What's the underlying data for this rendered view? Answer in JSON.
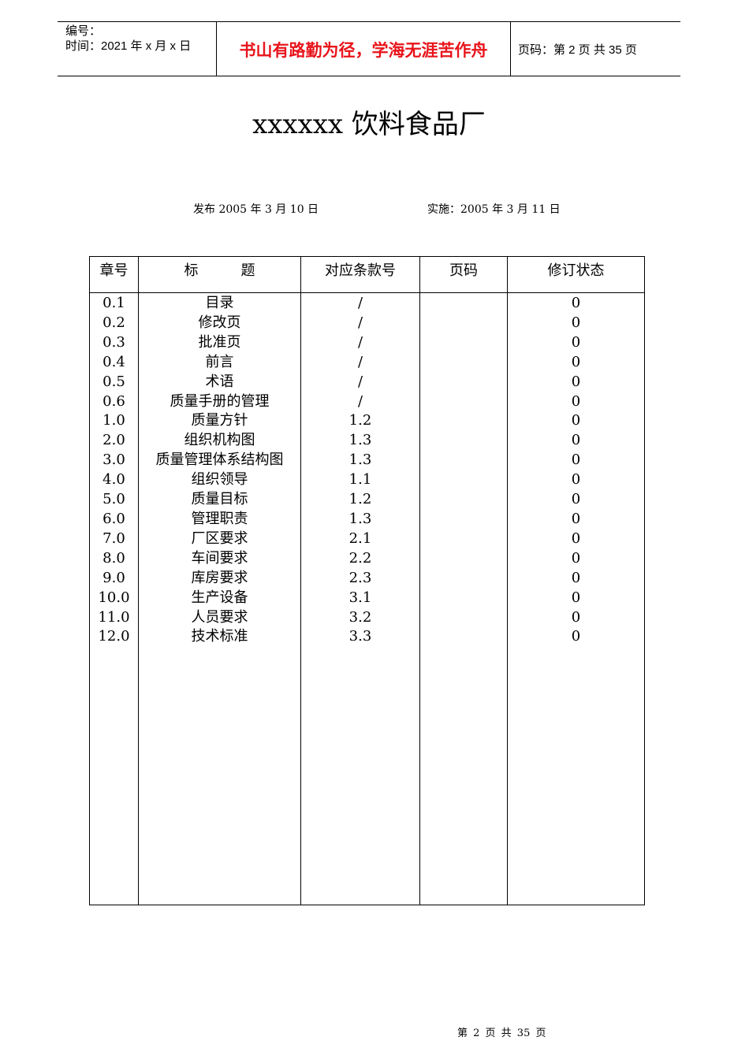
{
  "header": {
    "number_label": "编号：",
    "time_label": "时间：2021 年 x 月 x 日",
    "slogan": "书山有路勤为径，学海无涯苦作舟",
    "page_info": "页码：第 2 页  共 35 页"
  },
  "title": "xxxxxx 饮料食品厂",
  "publish": "发布 2005 年 3 月 10 日",
  "implement": "实施：2005 年 3 月 11 日",
  "table": {
    "columns": [
      "章号",
      "标　　　题",
      "对应条款号",
      "页码",
      "修订状态"
    ],
    "rows": [
      [
        "0.1",
        "目录",
        "/",
        "",
        "0"
      ],
      [
        "0.2",
        "修改页",
        "/",
        "",
        "0"
      ],
      [
        "0.3",
        "批准页",
        "/",
        "",
        "0"
      ],
      [
        "0.4",
        "前言",
        "/",
        "",
        "0"
      ],
      [
        "0.5",
        "术语",
        "/",
        "",
        "0"
      ],
      [
        "0.6",
        "质量手册的管理",
        "/",
        "",
        "0"
      ],
      [
        "1.0",
        "质量方针",
        "1.2",
        "",
        "0"
      ],
      [
        "2.0",
        "组织机构图",
        "1.3",
        "",
        "0"
      ],
      [
        "3.0",
        "质量管理体系结构图",
        "1.3",
        "",
        "0"
      ],
      [
        "4.0",
        "组织领导",
        "1.1",
        "",
        "0"
      ],
      [
        "5.0",
        "质量目标",
        "1.2",
        "",
        "0"
      ],
      [
        "6.0",
        "管理职责",
        "1.3",
        "",
        "0"
      ],
      [
        "7.0",
        "厂区要求",
        "2.1",
        "",
        "0"
      ],
      [
        "8.0",
        "车间要求",
        "2.2",
        "",
        "0"
      ],
      [
        "9.0",
        "库房要求",
        "2.3",
        "",
        "0"
      ],
      [
        "10.0",
        "生产设备",
        "3.1",
        "",
        "0"
      ],
      [
        "11.0",
        "人员要求",
        "3.2",
        "",
        "0"
      ],
      [
        "12.0",
        "技术标准",
        "3.3",
        "",
        "0"
      ]
    ]
  },
  "footer": "第 2 页 共 35 页",
  "colors": {
    "slogan": "#e8141b"
  }
}
